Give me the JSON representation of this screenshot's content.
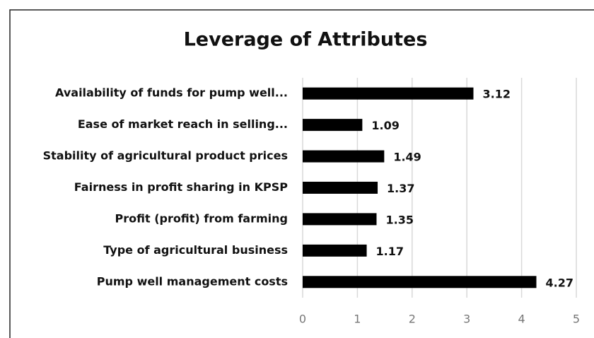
{
  "chart_data": {
    "type": "bar",
    "orientation": "horizontal",
    "title": "Leverage of Attributes",
    "categories": [
      "Availability of funds for pump well...",
      "Ease of market reach in selling...",
      "Stability of agricultural product prices",
      "Fairness in profit sharing in KPSP",
      "Profit (profit) from farming",
      "Type of agricultural business",
      "Pump well management costs"
    ],
    "values": [
      3.12,
      1.09,
      1.49,
      1.37,
      1.35,
      1.17,
      4.27
    ],
    "color": "#000000",
    "xlim": [
      0,
      5
    ],
    "xticks": [
      0,
      1,
      2,
      3,
      4,
      5
    ],
    "grid": true
  }
}
